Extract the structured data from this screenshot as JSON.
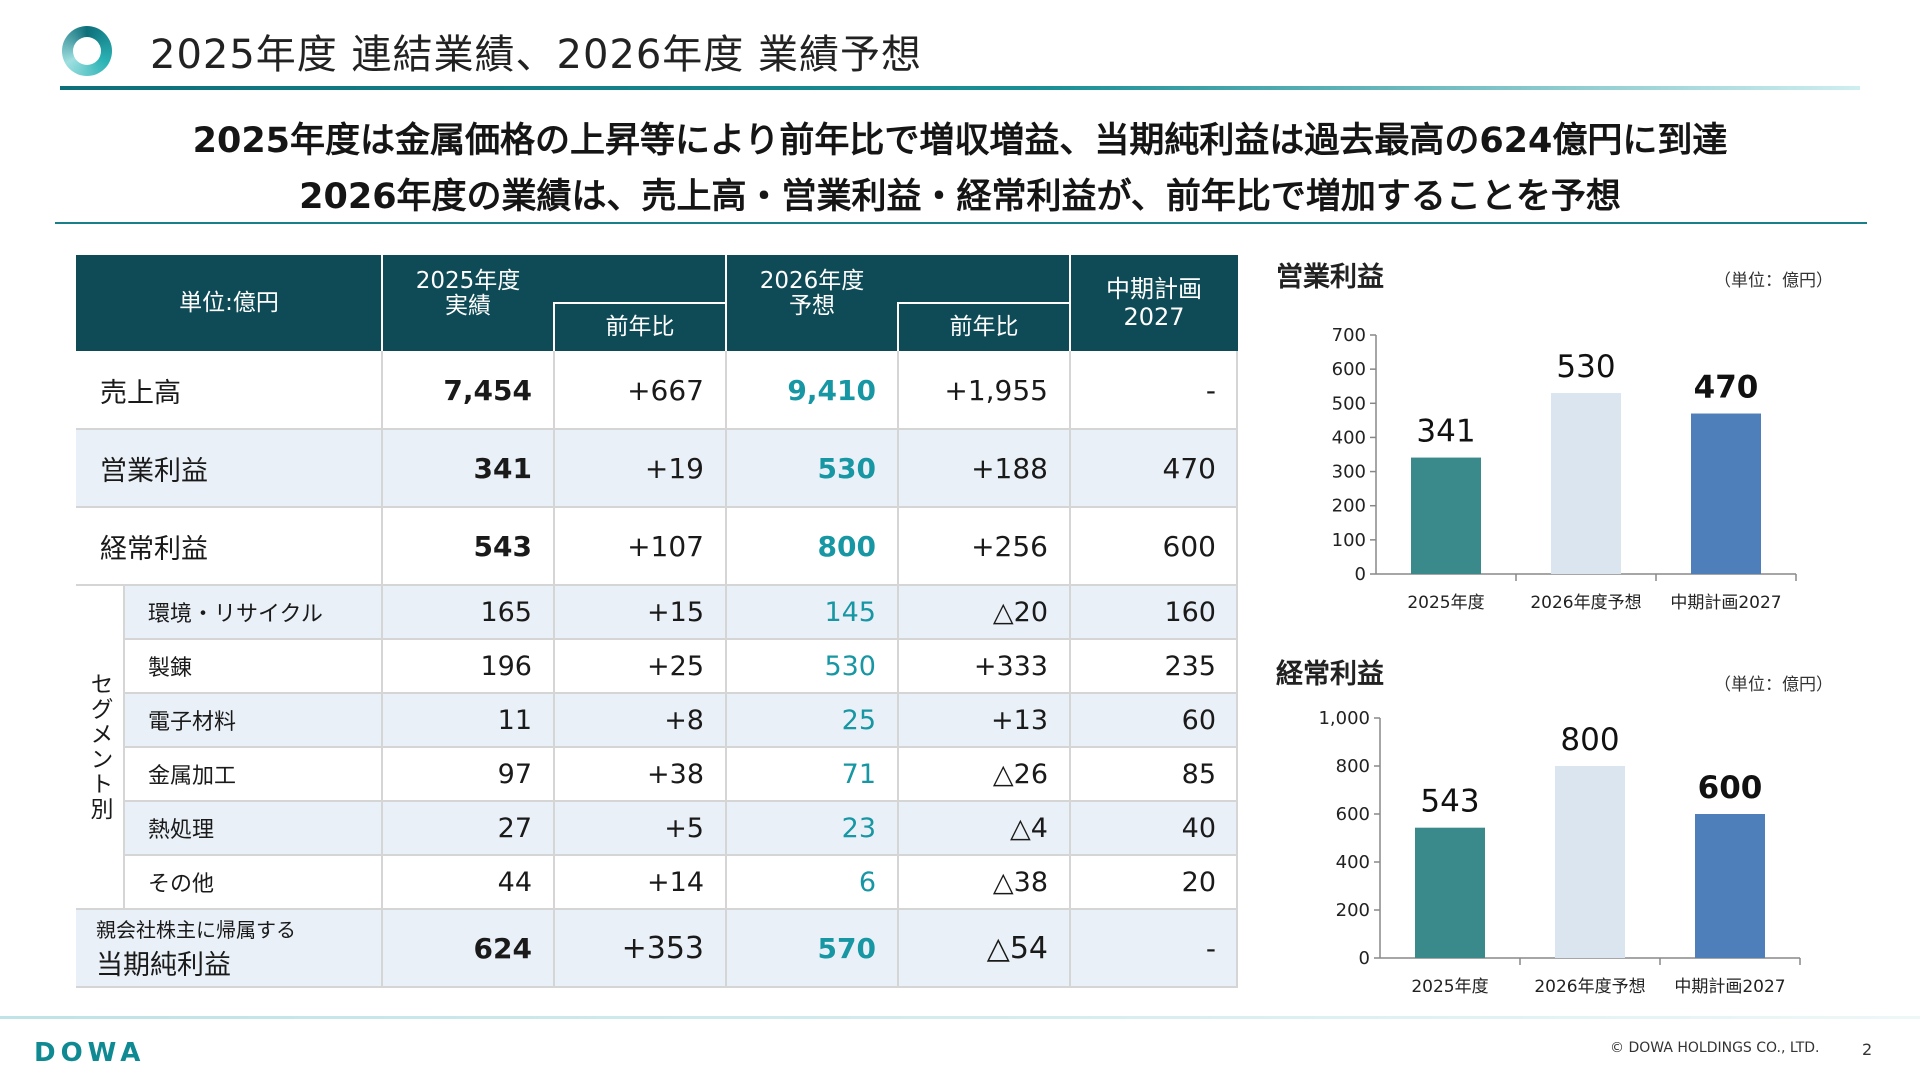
{
  "header": {
    "title": "2025年度 連結業績、2026年度 業績予想",
    "headline_1": "2025年度は金属価格の上昇等により前年比で増収増益、当期純利益は過去最高の624億円に到達",
    "headline_2": "2026年度の業績は、売上高・営業利益・経常利益が、前年比で増加することを予想"
  },
  "table": {
    "headers": {
      "unit": "単位:億円",
      "fy2025": "2025年度\n実績",
      "yoy_1": "前年比",
      "fy2026": "2026年度\n予想",
      "yoy_2": "前年比",
      "plan": "中期計画\n2027"
    },
    "segment_label": "セグメント別",
    "rows": [
      {
        "label": "売上高",
        "fy2025": "7,454",
        "yoy1": "+667",
        "fy2026": "9,410",
        "yoy2": "+1,955",
        "plan": "-"
      },
      {
        "label": "営業利益",
        "fy2025": "341",
        "yoy1": "+19",
        "fy2026": "530",
        "yoy2": "+188",
        "plan": "470"
      },
      {
        "label": "経常利益",
        "fy2025": "543",
        "yoy1": "+107",
        "fy2026": "800",
        "yoy2": "+256",
        "plan": "600"
      },
      {
        "label": "環境・リサイクル",
        "fy2025": "165",
        "yoy1": "+15",
        "fy2026": "145",
        "yoy2": "△20",
        "plan": "160"
      },
      {
        "label": "製錬",
        "fy2025": "196",
        "yoy1": "+25",
        "fy2026": "530",
        "yoy2": "+333",
        "plan": "235"
      },
      {
        "label": "電子材料",
        "fy2025": "11",
        "yoy1": "+8",
        "fy2026": "25",
        "yoy2": "+13",
        "plan": "60"
      },
      {
        "label": "金属加工",
        "fy2025": "97",
        "yoy1": "+38",
        "fy2026": "71",
        "yoy2": "△26",
        "plan": "85"
      },
      {
        "label": "熱処理",
        "fy2025": "27",
        "yoy1": "+5",
        "fy2026": "23",
        "yoy2": "△4",
        "plan": "40"
      },
      {
        "label": "その他",
        "fy2025": "44",
        "yoy1": "+14",
        "fy2026": "6",
        "yoy2": "△38",
        "plan": "20"
      }
    ],
    "net_income": {
      "label_small": "親会社株主に帰属する",
      "label": "当期純利益",
      "fy2025": "624",
      "yoy1": "+353",
      "fy2026": "570",
      "yoy2": "△54",
      "plan": "-"
    }
  },
  "chart_data": [
    {
      "type": "bar",
      "title": "営業利益",
      "unit_note": "（単位：億円）",
      "categories": [
        "2025年度",
        "2026年度予想",
        "中期計画2027"
      ],
      "values": [
        341,
        530,
        470
      ],
      "value_labels": [
        "341",
        "530",
        "470"
      ],
      "yticks": [
        "0",
        "100",
        "200",
        "300",
        "400",
        "500",
        "600",
        "700"
      ],
      "ylim": [
        0,
        700
      ],
      "colors": [
        "#3a8a8c",
        "#dbe5f0",
        "#4e7fbb"
      ]
    },
    {
      "type": "bar",
      "title": "経常利益",
      "unit_note": "（単位：億円）",
      "categories": [
        "2025年度",
        "2026年度予想",
        "中期計画2027"
      ],
      "values": [
        543,
        800,
        600
      ],
      "value_labels": [
        "543",
        "800",
        "600"
      ],
      "yticks": [
        "0",
        "200",
        "400",
        "600",
        "800",
        "1,000"
      ],
      "ylim": [
        0,
        1000
      ],
      "colors": [
        "#3a8a8c",
        "#dbe5f0",
        "#4e7fbb"
      ]
    }
  ],
  "footer": {
    "brand": "DOWA",
    "copyright": "© DOWA HOLDINGS CO., LTD.",
    "page": "2"
  }
}
